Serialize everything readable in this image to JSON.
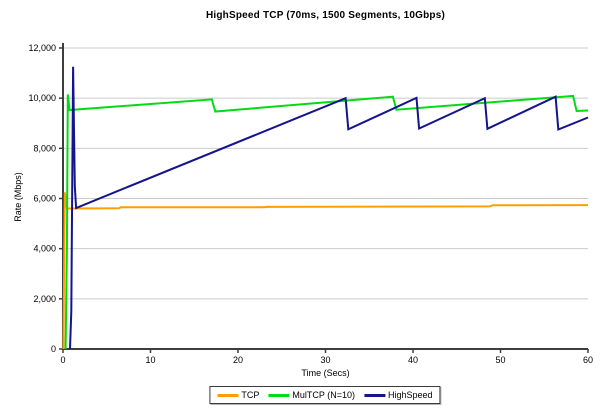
{
  "chart_data": {
    "type": "line",
    "title": "HighSpeed TCP (70ms, 1500 Segments, 10Gbps)",
    "xlabel": "Time (Secs)",
    "ylabel": "Rate (Mbps)",
    "xlim": [
      0,
      60
    ],
    "ylim": [
      0,
      12000
    ],
    "x_ticks": [
      {
        "value": 0,
        "label": "0"
      },
      {
        "value": 10,
        "label": "10"
      },
      {
        "value": 20,
        "label": "20"
      },
      {
        "value": 30,
        "label": "30"
      },
      {
        "value": 40,
        "label": "40"
      },
      {
        "value": 50,
        "label": "50"
      },
      {
        "value": 60,
        "label": "60"
      }
    ],
    "y_ticks": [
      {
        "value": 0,
        "label": "0"
      },
      {
        "value": 2000,
        "label": "2,000"
      },
      {
        "value": 4000,
        "label": "4,000"
      },
      {
        "value": 6000,
        "label": "6,000"
      },
      {
        "value": 8000,
        "label": "8,000"
      },
      {
        "value": 10000,
        "label": "10,000"
      },
      {
        "value": 12000,
        "label": "12,000"
      }
    ],
    "grid": "horizontal",
    "legend_position": "bottom-center",
    "colors": {
      "background": "#FFFFFF",
      "grid": "#CBCBCB",
      "axis": "#3D3D3D",
      "text": "#000000"
    },
    "series": [
      {
        "name": "TCP",
        "color": "#FF9E00",
        "points": [
          [
            0.05,
            0
          ],
          [
            0.2,
            6250
          ],
          [
            0.45,
            5600
          ],
          [
            6.4,
            5610
          ],
          [
            6.6,
            5650
          ],
          [
            23.0,
            5655
          ],
          [
            23.3,
            5665
          ],
          [
            48.8,
            5685
          ],
          [
            49.1,
            5730
          ],
          [
            60,
            5735
          ]
        ]
      },
      {
        "name": "MulTCP (N=10)",
        "color": "#00DC12",
        "points": [
          [
            0.3,
            0
          ],
          [
            0.45,
            4000
          ],
          [
            0.55,
            10150
          ],
          [
            0.75,
            9530
          ],
          [
            17.0,
            9950
          ],
          [
            17.4,
            9470
          ],
          [
            37.7,
            10060
          ],
          [
            38.1,
            9540
          ],
          [
            58.3,
            10090
          ],
          [
            58.7,
            9490
          ],
          [
            60,
            9510
          ]
        ]
      },
      {
        "name": "HighSpeed",
        "color": "#14148C",
        "points": [
          [
            0.8,
            0
          ],
          [
            0.95,
            1500
          ],
          [
            1.15,
            11250
          ],
          [
            1.35,
            6500
          ],
          [
            1.5,
            5620
          ],
          [
            32.3,
            10000
          ],
          [
            32.6,
            8760
          ],
          [
            40.4,
            10010
          ],
          [
            40.7,
            8790
          ],
          [
            48.2,
            10000
          ],
          [
            48.5,
            8780
          ],
          [
            56.3,
            10060
          ],
          [
            56.6,
            8750
          ],
          [
            60,
            9230
          ]
        ]
      }
    ]
  }
}
